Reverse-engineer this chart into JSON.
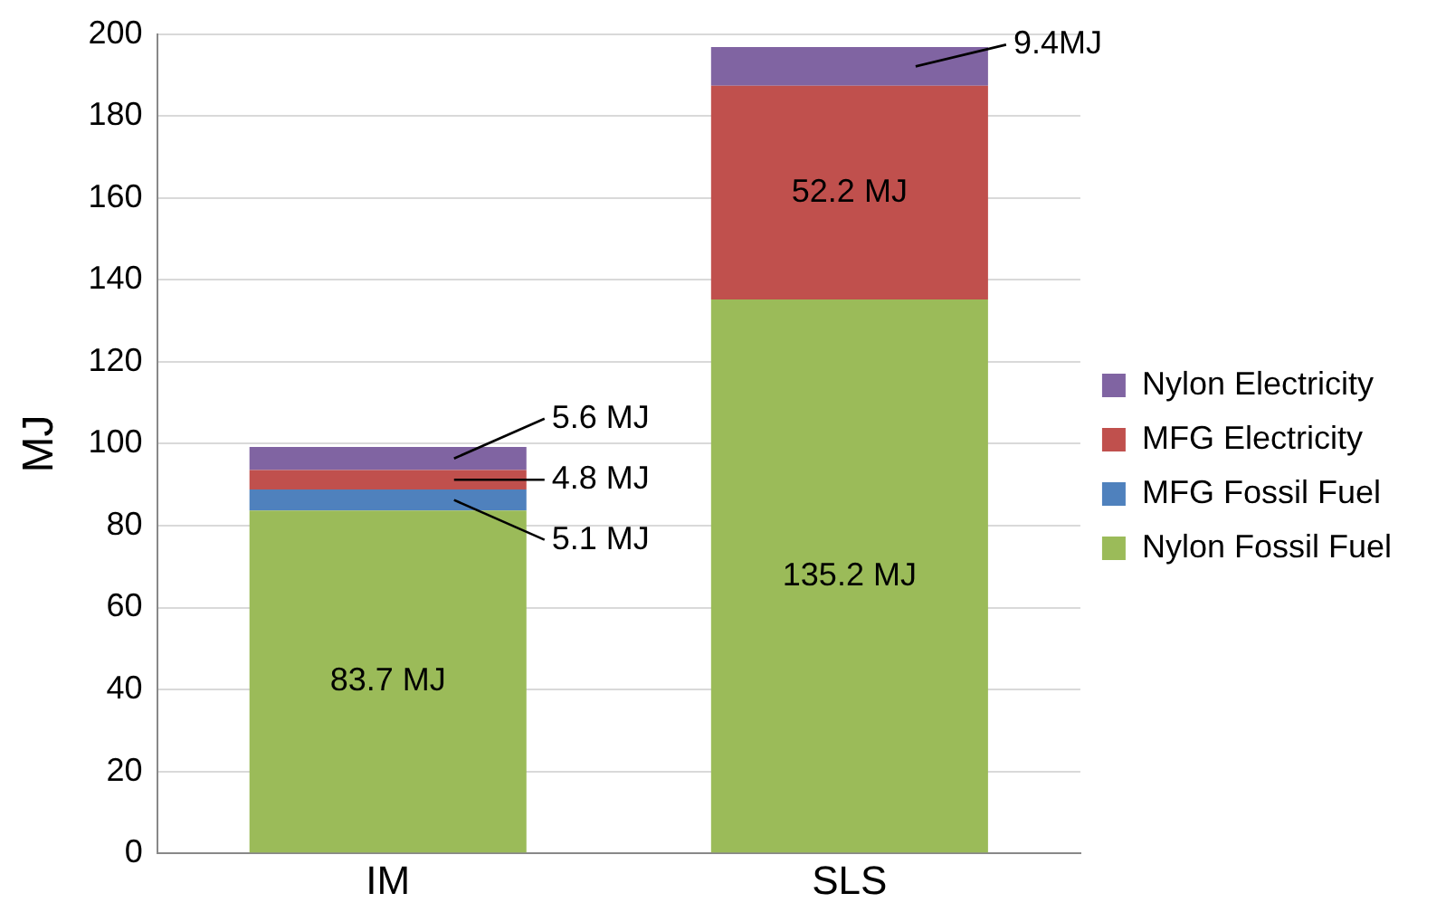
{
  "chart_data": {
    "type": "bar",
    "stacked": true,
    "ylabel": "MJ",
    "categories": [
      "IM",
      "SLS"
    ],
    "series": [
      {
        "name": "Nylon Fossil Fuel",
        "color": "#9bbb59",
        "values": [
          83.7,
          135.2
        ],
        "value_labels": [
          "83.7 MJ",
          "135.2 MJ"
        ]
      },
      {
        "name": "MFG Fossil Fuel",
        "color": "#4f81bd",
        "values": [
          5.1,
          null
        ],
        "value_labels": [
          "5.1 MJ",
          null
        ]
      },
      {
        "name": "MFG Electricity",
        "color": "#c0504d",
        "values": [
          4.8,
          52.2
        ],
        "value_labels": [
          "4.8 MJ",
          "52.2 MJ"
        ]
      },
      {
        "name": "Nylon Electricity",
        "color": "#8064a2",
        "values": [
          5.6,
          9.4
        ],
        "value_labels": [
          "5.6 MJ",
          "9.4MJ"
        ]
      }
    ],
    "ylim": [
      0,
      200
    ],
    "yticks": [
      0,
      20,
      40,
      60,
      80,
      100,
      120,
      140,
      160,
      180,
      200
    ],
    "grid": "y",
    "legend": "right"
  }
}
